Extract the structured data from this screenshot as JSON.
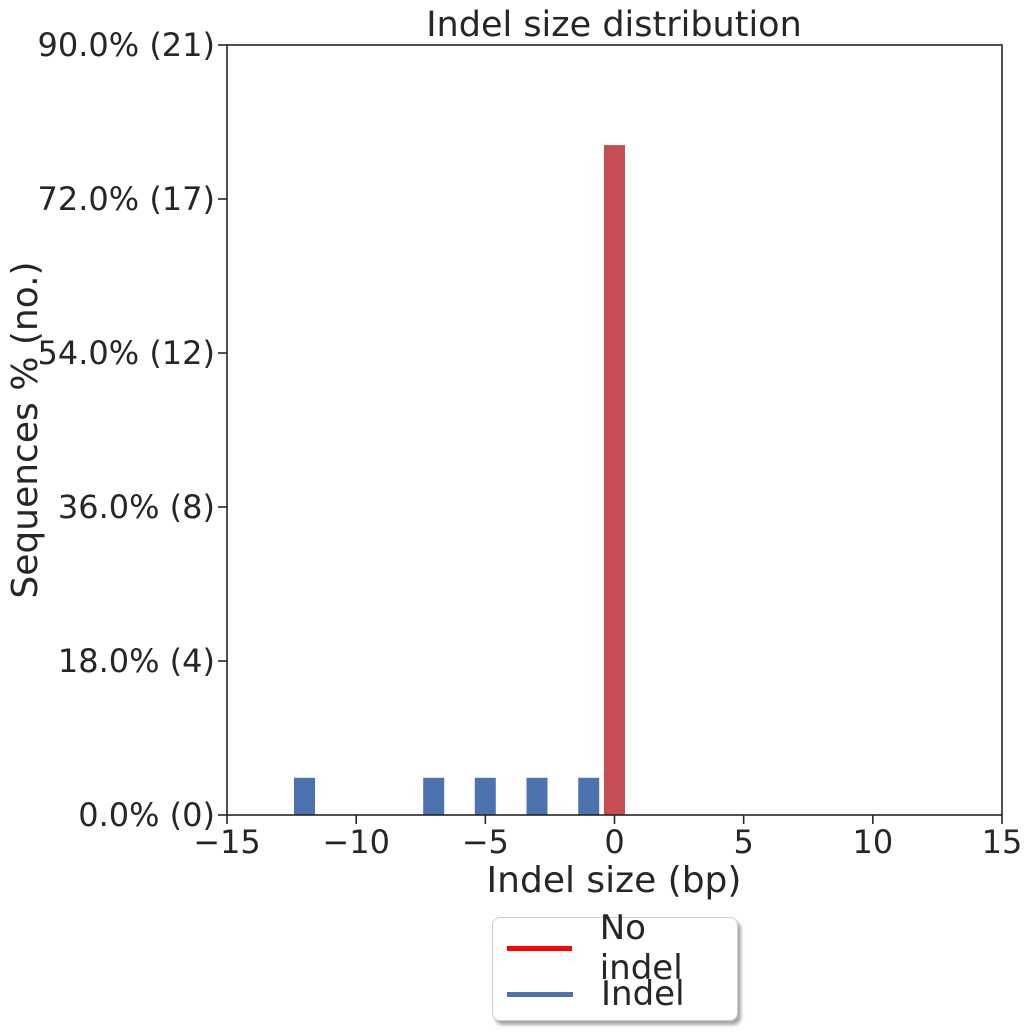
{
  "chart_data": {
    "type": "bar",
    "title": "Indel size distribution",
    "xlabel": "Indel size (bp)",
    "ylabel": "Sequences % (no.)",
    "xlim": [
      -15,
      15
    ],
    "ylim": [
      0,
      90
    ],
    "xticks": [
      -15,
      -10,
      -5,
      0,
      5,
      10,
      15
    ],
    "xtick_labels": [
      "−15",
      "−10",
      "−5",
      "0",
      "5",
      "10",
      "15"
    ],
    "yticks": [
      0,
      18,
      36,
      54,
      72,
      90
    ],
    "ytick_labels": [
      "0.0% (0)",
      "18.0% (4)",
      "36.0% (8)",
      "54.0% (12)",
      "72.0% (17)",
      "90.0% (21)"
    ],
    "grid": false,
    "legend_position": "bottom-center",
    "series": [
      {
        "name": "No indel",
        "color": "#c44e52",
        "legend_color": "#ff0000",
        "x": [
          0
        ],
        "values": [
          78.3
        ]
      },
      {
        "name": "Indel",
        "color": "#4c72b0",
        "legend_color": "#4c72b0",
        "x": [
          -12,
          -7,
          -5,
          -3,
          -1
        ],
        "values": [
          4.35,
          4.35,
          4.35,
          4.35,
          4.35
        ]
      }
    ]
  }
}
